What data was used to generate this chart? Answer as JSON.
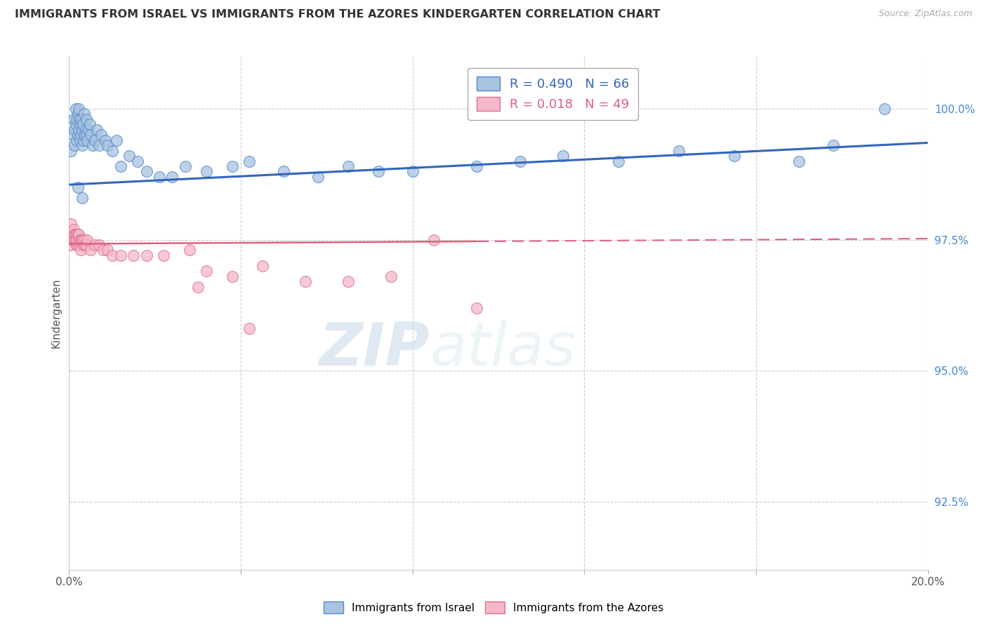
{
  "title": "IMMIGRANTS FROM ISRAEL VS IMMIGRANTS FROM THE AZORES KINDERGARTEN CORRELATION CHART",
  "source": "Source: ZipAtlas.com",
  "ylabel": "Kindergarten",
  "y_ticks": [
    92.5,
    95.0,
    97.5,
    100.0
  ],
  "y_tick_labels": [
    "92.5%",
    "95.0%",
    "97.5%",
    "100.0%"
  ],
  "x_min": 0.0,
  "x_max": 20.0,
  "y_min": 91.2,
  "y_max": 101.0,
  "blue_R": 0.49,
  "blue_N": 66,
  "pink_R": 0.018,
  "pink_N": 49,
  "blue_color": "#A8C4E0",
  "pink_color": "#F4B8C8",
  "blue_edge_color": "#5588CC",
  "pink_edge_color": "#E07090",
  "blue_line_color": "#3366BB",
  "pink_line_color": "#E06080",
  "legend_blue_label": "Immigrants from Israel",
  "legend_pink_label": "Immigrants from the Azores",
  "watermark_zip": "ZIP",
  "watermark_atlas": "atlas",
  "blue_x": [
    0.05,
    0.08,
    0.1,
    0.12,
    0.13,
    0.15,
    0.15,
    0.17,
    0.18,
    0.2,
    0.2,
    0.22,
    0.22,
    0.24,
    0.25,
    0.25,
    0.27,
    0.28,
    0.3,
    0.3,
    0.32,
    0.33,
    0.35,
    0.35,
    0.38,
    0.4,
    0.4,
    0.42,
    0.45,
    0.48,
    0.5,
    0.55,
    0.6,
    0.65,
    0.7,
    0.75,
    0.85,
    0.9,
    1.0,
    1.1,
    1.2,
    1.4,
    1.6,
    1.8,
    2.1,
    2.4,
    2.7,
    3.2,
    3.8,
    4.2,
    5.0,
    5.8,
    6.5,
    7.2,
    8.0,
    9.5,
    10.5,
    11.5,
    12.8,
    14.2,
    15.5,
    17.0,
    17.8,
    0.2,
    0.3,
    19.0
  ],
  "blue_y": [
    99.2,
    99.5,
    99.8,
    99.6,
    99.3,
    99.7,
    100.0,
    99.4,
    99.8,
    99.5,
    99.9,
    99.6,
    100.0,
    99.8,
    99.4,
    99.7,
    99.5,
    99.8,
    99.3,
    99.6,
    99.7,
    99.4,
    99.5,
    99.9,
    99.6,
    99.5,
    99.8,
    99.4,
    99.6,
    99.7,
    99.5,
    99.3,
    99.4,
    99.6,
    99.3,
    99.5,
    99.4,
    99.3,
    99.2,
    99.4,
    98.9,
    99.1,
    99.0,
    98.8,
    98.7,
    98.7,
    98.9,
    98.8,
    98.9,
    99.0,
    98.8,
    98.7,
    98.9,
    98.8,
    98.8,
    98.9,
    99.0,
    99.1,
    99.0,
    99.2,
    99.1,
    99.0,
    99.3,
    98.5,
    98.3,
    100.0
  ],
  "pink_x": [
    0.03,
    0.05,
    0.07,
    0.08,
    0.1,
    0.1,
    0.12,
    0.13,
    0.15,
    0.15,
    0.17,
    0.18,
    0.18,
    0.2,
    0.2,
    0.22,
    0.23,
    0.25,
    0.25,
    0.27,
    0.28,
    0.3,
    0.3,
    0.33,
    0.35,
    0.37,
    0.4,
    0.42,
    0.5,
    0.6,
    0.7,
    0.8,
    0.9,
    1.0,
    1.2,
    1.5,
    1.8,
    2.2,
    2.8,
    3.2,
    3.8,
    4.5,
    5.5,
    6.5,
    7.5,
    8.5,
    9.5,
    3.0,
    4.2
  ],
  "pink_y": [
    97.4,
    97.8,
    97.5,
    97.6,
    97.5,
    97.7,
    97.6,
    97.5,
    97.6,
    97.5,
    97.4,
    97.6,
    97.5,
    97.4,
    97.6,
    97.5,
    97.6,
    97.5,
    97.4,
    97.3,
    97.5,
    97.5,
    97.5,
    97.4,
    97.5,
    97.4,
    97.4,
    97.5,
    97.3,
    97.4,
    97.4,
    97.3,
    97.3,
    97.2,
    97.2,
    97.2,
    97.2,
    97.2,
    97.3,
    96.9,
    96.8,
    97.0,
    96.7,
    96.7,
    96.8,
    97.5,
    96.2,
    96.6,
    95.8
  ],
  "blue_trendline_x": [
    0.0,
    20.0
  ],
  "blue_trendline_y": [
    98.55,
    99.35
  ],
  "pink_trendline_x": [
    0.0,
    20.0
  ],
  "pink_trendline_y": [
    97.42,
    97.52
  ]
}
